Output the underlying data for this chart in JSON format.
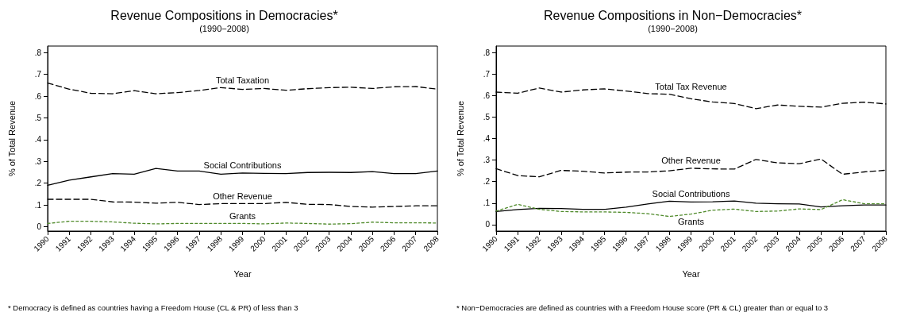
{
  "chart_data": [
    {
      "type": "line",
      "title": "Revenue Compositions in Democracies*",
      "subtitle": "(1990−2008)",
      "xlabel": "Year",
      "ylabel": "% of Total Revenue",
      "categories": [
        "1990",
        "1991",
        "1992",
        "1993",
        "1994",
        "1995",
        "1996",
        "1997",
        "1998",
        "1999",
        "2000",
        "2001",
        "2002",
        "2003",
        "2004",
        "2005",
        "2006",
        "2007",
        "2008"
      ],
      "ylim": [
        -0.02,
        0.83
      ],
      "yticks": [
        0,
        {
          "value": 0.1,
          "label": ".1"
        },
        {
          "value": 0.2,
          "label": ".2"
        },
        {
          "value": 0.3,
          "label": ".3"
        },
        {
          "value": 0.4,
          "label": ".4"
        },
        {
          "value": 0.5,
          "label": ".5"
        },
        {
          "value": 0.6,
          "label": ".6"
        },
        {
          "value": 0.7,
          "label": ".7"
        },
        {
          "value": 0.8,
          "label": ".8"
        }
      ],
      "series": [
        {
          "name": "Total Taxation",
          "color": "#000000",
          "line_style": "dashed",
          "values": [
            0.66,
            0.632,
            0.613,
            0.611,
            0.625,
            0.611,
            0.616,
            0.626,
            0.639,
            0.631,
            0.635,
            0.627,
            0.634,
            0.639,
            0.641,
            0.635,
            0.643,
            0.644,
            0.632
          ]
        },
        {
          "name": "Social Contributions",
          "color": "#000000",
          "line_style": "solid",
          "values": [
            0.19,
            0.214,
            0.229,
            0.244,
            0.241,
            0.268,
            0.256,
            0.256,
            0.241,
            0.247,
            0.245,
            0.244,
            0.249,
            0.25,
            0.249,
            0.253,
            0.244,
            0.244,
            0.256
          ]
        },
        {
          "name": "Other Revenue",
          "color": "#000000",
          "line_style": "dashed",
          "values": [
            0.126,
            0.126,
            0.126,
            0.114,
            0.113,
            0.108,
            0.112,
            0.102,
            0.106,
            0.106,
            0.106,
            0.112,
            0.103,
            0.102,
            0.093,
            0.09,
            0.093,
            0.096,
            0.096
          ]
        },
        {
          "name": "Grants",
          "color": "#4f8a2a",
          "line_style": "dotted",
          "values": [
            0.015,
            0.025,
            0.025,
            0.022,
            0.016,
            0.013,
            0.015,
            0.015,
            0.015,
            0.015,
            0.013,
            0.017,
            0.015,
            0.012,
            0.014,
            0.021,
            0.018,
            0.018,
            0.017
          ]
        }
      ],
      "annotations": [
        "* Democracy is defined as countries having a Freedom House (CL & PR) of less than 3"
      ]
    },
    {
      "type": "line",
      "title": "Revenue Compositions in Non−Democracies*",
      "subtitle": "(1990−2008)",
      "xlabel": "Year",
      "ylabel": "% of Total Revenue",
      "categories": [
        "1990",
        "1991",
        "1992",
        "1993",
        "1994",
        "1995",
        "1996",
        "1997",
        "1998",
        "1999",
        "2000",
        "2001",
        "2002",
        "2003",
        "2004",
        "2005",
        "2006",
        "2007",
        "2008"
      ],
      "ylim": [
        -0.03,
        0.83
      ],
      "yticks": [
        0,
        {
          "value": 0.1,
          "label": ".1"
        },
        {
          "value": 0.2,
          "label": ".2"
        },
        {
          "value": 0.3,
          "label": ".3"
        },
        {
          "value": 0.4,
          "label": ".4"
        },
        {
          "value": 0.5,
          "label": ".5"
        },
        {
          "value": 0.6,
          "label": ".6"
        },
        {
          "value": 0.7,
          "label": ".7"
        },
        {
          "value": 0.8,
          "label": ".8"
        }
      ],
      "series": [
        {
          "name": "Total Tax Revenue",
          "color": "#000000",
          "line_style": "dashed",
          "values": [
            0.616,
            0.611,
            0.635,
            0.616,
            0.626,
            0.631,
            0.621,
            0.609,
            0.606,
            0.585,
            0.57,
            0.563,
            0.539,
            0.556,
            0.55,
            0.546,
            0.564,
            0.569,
            0.561
          ]
        },
        {
          "name": "Other Revenue",
          "color": "#000000",
          "line_style": "dashed",
          "values": [
            0.26,
            0.228,
            0.222,
            0.252,
            0.248,
            0.24,
            0.244,
            0.245,
            0.25,
            0.262,
            0.259,
            0.258,
            0.303,
            0.287,
            0.283,
            0.305,
            0.234,
            0.245,
            0.253
          ]
        },
        {
          "name": "Social Contributions",
          "color": "#000000",
          "line_style": "solid",
          "values": [
            0.061,
            0.07,
            0.076,
            0.075,
            0.071,
            0.071,
            0.081,
            0.096,
            0.109,
            0.105,
            0.106,
            0.11,
            0.1,
            0.097,
            0.096,
            0.082,
            0.088,
            0.091,
            0.091
          ]
        },
        {
          "name": "Grants",
          "color": "#4f8a2a",
          "line_style": "dotted",
          "values": [
            0.063,
            0.094,
            0.071,
            0.061,
            0.059,
            0.059,
            0.057,
            0.051,
            0.038,
            0.049,
            0.067,
            0.072,
            0.061,
            0.063,
            0.073,
            0.07,
            0.116,
            0.097,
            0.097
          ]
        }
      ],
      "annotations": [
        "* Non−Democracies are defined as countries with a Freedom House score (PR & CL) greater than or equal to 3"
      ]
    }
  ]
}
